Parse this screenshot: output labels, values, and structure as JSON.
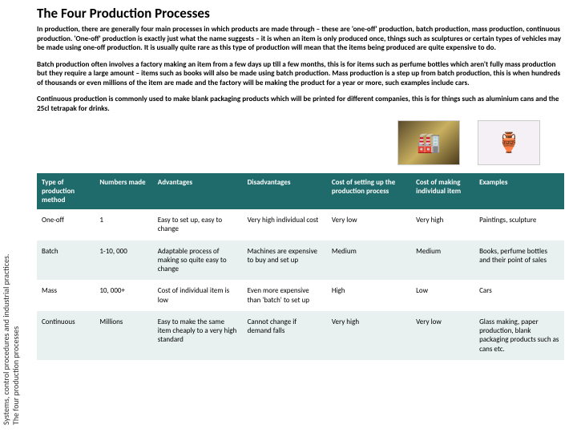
{
  "sidebar": {
    "line1": "Systems, control procedures  and industrial practices.",
    "line2": "The four production processes"
  },
  "title": "The Four Production Processes",
  "paragraphs": [
    "In production, there are generally four main processes in which products are made through – these are 'one-off' production, batch production, mass production, continuous production. 'One-off' production is exactly just what the name suggests – it is when an item is only produced once, things such as sculptures or certain types of vehicles may be made using one-off production. It is usually quite rare as this type of production will mean that the items being produced are quite expensive to do.",
    "Batch production often involves a factory making an item from a few days up till a few months, this is for items such as perfume bottles which aren't fully mass production but they require a large amount – items such as books will also be made using batch production. Mass production is a step up from batch production, this is when hundreds of thousands or even millions of the item are made and the factory will be making the product for a year or more, such examples include cars.",
    "Continuous production is commonly used to make blank packaging products which will be printed for different companies, this is for things such as aluminium cans and the 25cl tetrapak for drinks."
  ],
  "images": {
    "img1_glyph": "🏭",
    "img2_glyph": "🏺"
  },
  "table": {
    "header_bg": "#1f6b6b",
    "header_fg": "#ffffff",
    "alt_row_bg": "#e8f0f0",
    "columns": [
      "Type of production method",
      "Numbers made",
      "Advantages",
      "Disadvantages",
      "Cost of setting up the production process",
      "Cost of making individual item",
      "Examples"
    ],
    "rows": [
      [
        "One-off",
        "1",
        "Easy to set up, easy to change",
        "Very high individual cost",
        "Very low",
        "Very high",
        "Paintings, sculpture"
      ],
      [
        "Batch",
        "1-10, 000",
        "Adaptable process of making so quite easy to change",
        "Machines are expensive to buy and set up",
        "Medium",
        "Medium",
        "Books, perfume bottles and their point of sales"
      ],
      [
        "Mass",
        "10, 000+",
        "Cost of individual item is low",
        "Even more expensive than 'batch' to set up",
        "High",
        "Low",
        "Cars"
      ],
      [
        "Continuous",
        "Millions",
        "Easy to make the same item cheaply to a very high standard",
        "Cannot change if demand falls",
        "Very high",
        "Very low",
        "Glass making, paper production, blank packaging products such as cans etc."
      ]
    ]
  }
}
